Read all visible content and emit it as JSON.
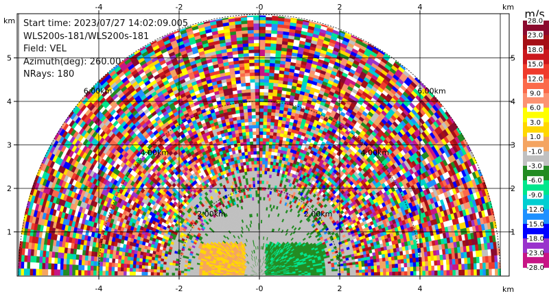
{
  "info": {
    "start_time": "Start time: 2023/07/27 14:02:09.005",
    "system": "WLS200s-181/WLS200s-181",
    "field": "Field: VEL",
    "azimuth": "Azimuth(deg): 260.00",
    "nrays": "NRays: 180"
  },
  "axes": {
    "x_ticks": [
      "-4",
      "-2",
      "-0",
      "2",
      "4"
    ],
    "y_ticks": [
      "1",
      "2",
      "3",
      "4",
      "5"
    ],
    "unit": "km"
  },
  "range_rings": [
    "2.00km",
    "4.00km",
    "6.00km"
  ],
  "colorbar": {
    "unit": "m/s",
    "labels": [
      "28.0",
      "23.0",
      "18.0",
      "15.0",
      "12.0",
      "9.0",
      "6.0",
      "3.0",
      "1.0",
      "-1.0",
      "-3.0",
      "-6.0",
      "-9.0",
      "-12.0",
      "-15.0",
      "-18.0",
      "-23.0",
      "-28.0"
    ],
    "colors": [
      "#8b0a2e",
      "#a50f15",
      "#cb181d",
      "#ef3b2c",
      "#fb6a4a",
      "#fc9272",
      "#ffff00",
      "#ffd700",
      "#f4a460",
      "#c0c0c0",
      "#228b22",
      "#00e68c",
      "#00ced1",
      "#1e90ff",
      "#0000ff",
      "#9932cc",
      "#c71585"
    ]
  }
}
